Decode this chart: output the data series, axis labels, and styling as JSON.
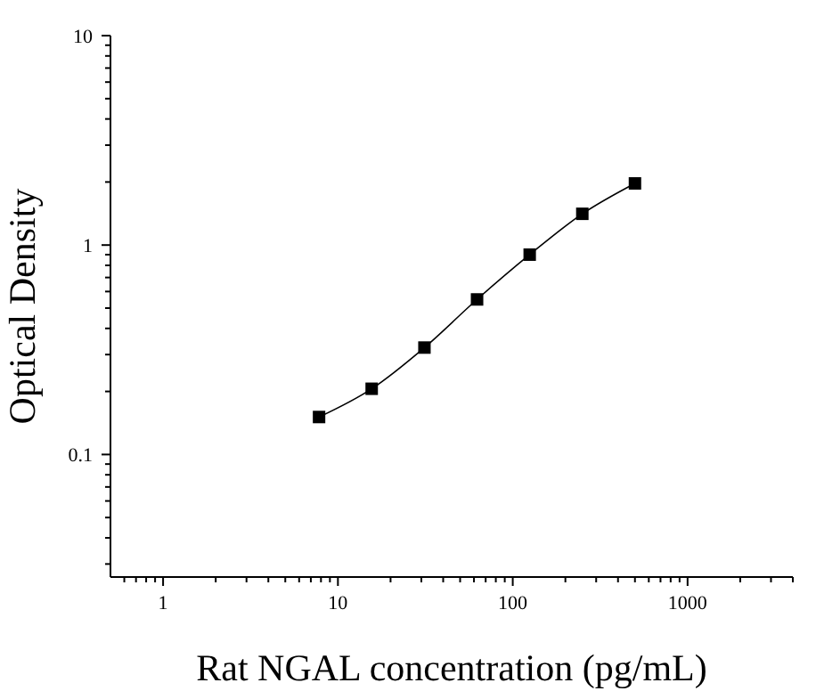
{
  "chart_data": {
    "type": "line",
    "xlabel": "Rat NGAL concentration (pg/mL)",
    "ylabel": "Optical Density",
    "log": "xy",
    "marker": "square",
    "line_style": "solid",
    "grid": false,
    "legend": false,
    "x": [
      7.8,
      15.6,
      31.25,
      62.5,
      125,
      250,
      500
    ],
    "series": [
      {
        "color": "#000000",
        "values": [
          0.151,
          0.206,
          0.324,
          0.55,
          0.9,
          1.41,
          1.97
        ]
      }
    ],
    "xlim": [
      0.5,
      4000
    ],
    "ylim": [
      0.026,
      10
    ],
    "xticks": [
      {
        "value": 0.6,
        "label": null
      },
      {
        "value": 0.7,
        "label": null
      },
      {
        "value": 0.8,
        "label": null
      },
      {
        "value": 0.9,
        "label": null
      },
      1,
      {
        "value": 2,
        "label": null
      },
      {
        "value": 3,
        "label": null
      },
      {
        "value": 4,
        "label": null
      },
      {
        "value": 5,
        "label": null
      },
      {
        "value": 6,
        "label": null
      },
      {
        "value": 7,
        "label": null
      },
      {
        "value": 8,
        "label": null
      },
      {
        "value": 9,
        "label": null
      },
      10,
      {
        "value": 20,
        "label": null
      },
      {
        "value": 30,
        "label": null
      },
      {
        "value": 40,
        "label": null
      },
      {
        "value": 50,
        "label": null
      },
      {
        "value": 60,
        "label": null
      },
      {
        "value": 70,
        "label": null
      },
      {
        "value": 80,
        "label": null
      },
      {
        "value": 90,
        "label": null
      },
      100,
      {
        "value": 200,
        "label": null
      },
      {
        "value": 300,
        "label": null
      },
      {
        "value": 400,
        "label": null
      },
      {
        "value": 500,
        "label": null
      },
      {
        "value": 600,
        "label": null
      },
      {
        "value": 700,
        "label": null
      },
      {
        "value": 800,
        "label": null
      },
      {
        "value": 900,
        "label": null
      },
      1000,
      {
        "value": 2000,
        "label": null
      },
      {
        "value": 3000,
        "label": null
      },
      {
        "value": 4000,
        "label": null
      }
    ],
    "yticks": [
      {
        "value": 0.03,
        "label": null
      },
      {
        "value": 0.04,
        "label": null
      },
      {
        "value": 0.05,
        "label": null
      },
      {
        "value": 0.06,
        "label": null
      },
      {
        "value": 0.07,
        "label": null
      },
      {
        "value": 0.08,
        "label": null
      },
      {
        "value": 0.09,
        "label": null
      },
      0.1,
      {
        "value": 0.2,
        "label": null
      },
      {
        "value": 0.3,
        "label": null
      },
      {
        "value": 0.4,
        "label": null
      },
      {
        "value": 0.5,
        "label": null
      },
      {
        "value": 0.6,
        "label": null
      },
      {
        "value": 0.7,
        "label": null
      },
      {
        "value": 0.8,
        "label": null
      },
      {
        "value": 0.9,
        "label": null
      },
      1,
      {
        "value": 2,
        "label": null
      },
      {
        "value": 3,
        "label": null
      },
      {
        "value": 4,
        "label": null
      },
      {
        "value": 5,
        "label": null
      },
      {
        "value": 6,
        "label": null
      },
      {
        "value": 7,
        "label": null
      },
      {
        "value": 8,
        "label": null
      },
      {
        "value": 9,
        "label": null
      },
      10
    ]
  }
}
